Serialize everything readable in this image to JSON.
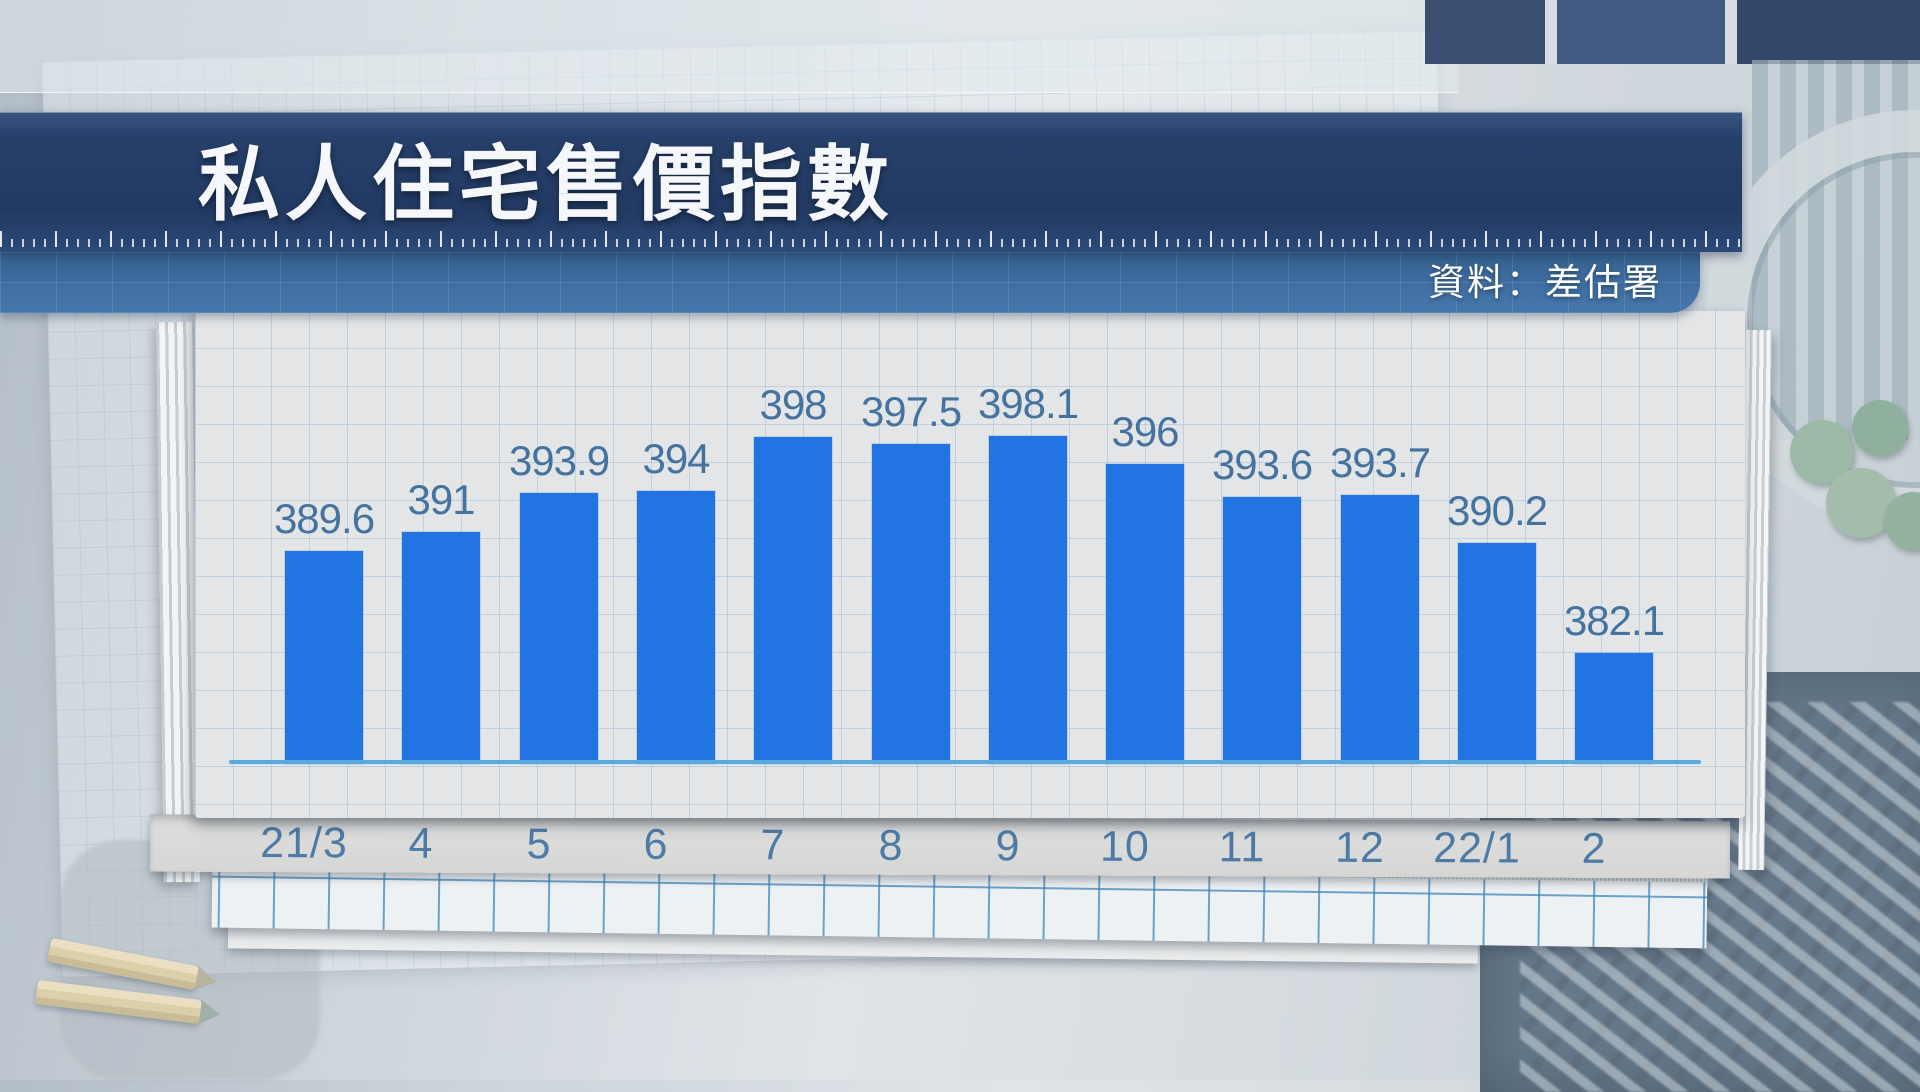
{
  "header": {
    "title": "私人住宅售價指數",
    "source_label": "資料：差估署"
  },
  "chart_data": {
    "type": "bar",
    "title": "私人住宅售價指數",
    "source": "資料：差估署",
    "categories": [
      "21/3",
      "4",
      "5",
      "6",
      "7",
      "8",
      "9",
      "10",
      "11",
      "12",
      "22/1",
      "2"
    ],
    "values": [
      389.6,
      391,
      393.9,
      394,
      398,
      397.5,
      398.1,
      396,
      393.6,
      393.7,
      390.2,
      382.1
    ],
    "value_labels": [
      "389.6",
      "391",
      "393.9",
      "394",
      "398",
      "397.5",
      "398.1",
      "396",
      "393.6",
      "393.7",
      "390.2",
      "382.1"
    ],
    "ylim": [
      374,
      402
    ],
    "grid": "graph-paper",
    "legend": "none",
    "colors": {
      "bar": "#2374e3",
      "value_label": "#45739f",
      "axis_label": "#4d7ba6",
      "baseline": "#58abdf",
      "title_bar": "#223a63",
      "source_strip": "#3e6c9f"
    }
  }
}
